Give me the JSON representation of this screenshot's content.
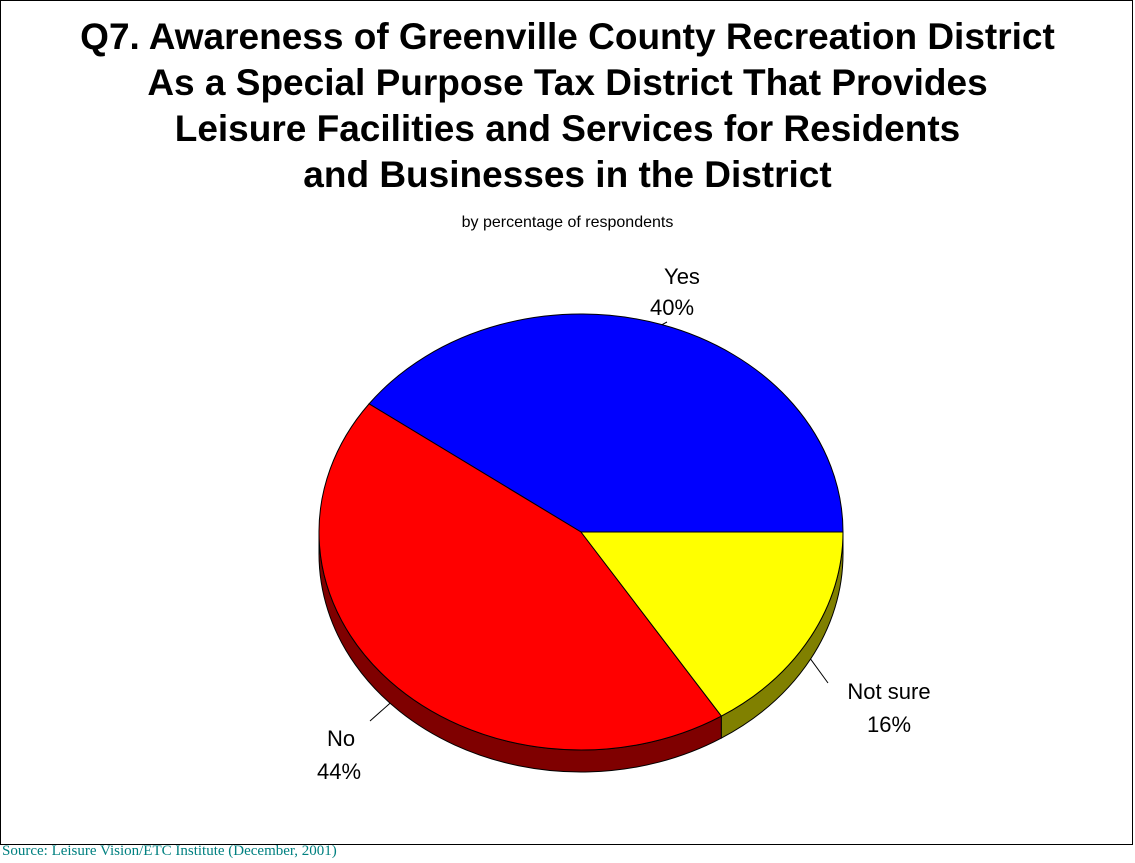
{
  "title_lines": [
    "Q7. Awareness of Greenville County Recreation District",
    "As a Special Purpose Tax District That Provides",
    "Leisure Facilities and Services for Residents",
    "and Businesses in the District"
  ],
  "subtitle": "by percentage of respondents",
  "source": "Source:  Leisure Vision/ETC Institute (December, 2001)",
  "colors": {
    "yes": "#0000ff",
    "no": "#ff0000",
    "no_side": "#7f0000",
    "not_sure": "#ffff00",
    "not_sure_side": "#808000",
    "source_text": "#008080"
  },
  "chart_data": {
    "type": "pie",
    "title": "Q7. Awareness of Greenville County Recreation District As a Special Purpose Tax District That Provides Leisure Facilities and Services for Residents and Businesses in the District",
    "subtitle": "by percentage of respondents",
    "three_d": true,
    "slices": [
      {
        "label": "Yes",
        "value": 40,
        "value_label": "40%"
      },
      {
        "label": "No",
        "value": 44,
        "value_label": "44%"
      },
      {
        "label": "Not sure",
        "value": 16,
        "value_label": "16%"
      }
    ]
  }
}
